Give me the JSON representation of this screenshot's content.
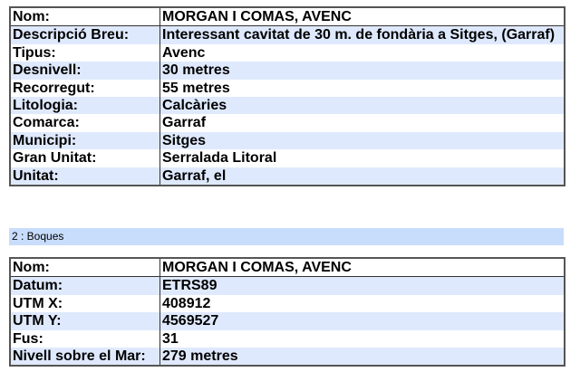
{
  "cave": {
    "rows": [
      {
        "label": "Nom:",
        "value": "MORGAN I COMAS, AVENC"
      },
      {
        "label": "Descripció Breu:",
        "value": "Interessant cavitat de 30 m. de fondària a Sitges, (Garraf)"
      },
      {
        "label": "Tipus:",
        "value": "Avenc"
      },
      {
        "label": "Desnivell:",
        "value": "30 metres"
      },
      {
        "label": "Recorregut:",
        "value": "55 metres"
      },
      {
        "label": "Litologia:",
        "value": "Calcàries"
      },
      {
        "label": "Comarca:",
        "value": "Garraf"
      },
      {
        "label": "Municipi:",
        "value": "Sitges"
      },
      {
        "label": "Gran Unitat:",
        "value": "Serralada Litoral"
      },
      {
        "label": "Unitat:",
        "value": "Garraf, el"
      }
    ]
  },
  "section": {
    "title": "2 : Boques"
  },
  "entrance": {
    "rows": [
      {
        "label": "Nom:",
        "value": "MORGAN I COMAS, AVENC"
      },
      {
        "label": "Datum:",
        "value": "ETRS89"
      },
      {
        "label": "UTM X:",
        "value": "408912"
      },
      {
        "label": "UTM Y:",
        "value": "4569527"
      },
      {
        "label": "Fus:",
        "value": "31"
      },
      {
        "label": "Nivell sobre el Mar:",
        "value": "279 metres"
      }
    ]
  },
  "colors": {
    "row_alt": "#dfe9fd",
    "section_bar": "#c8dcfc"
  }
}
